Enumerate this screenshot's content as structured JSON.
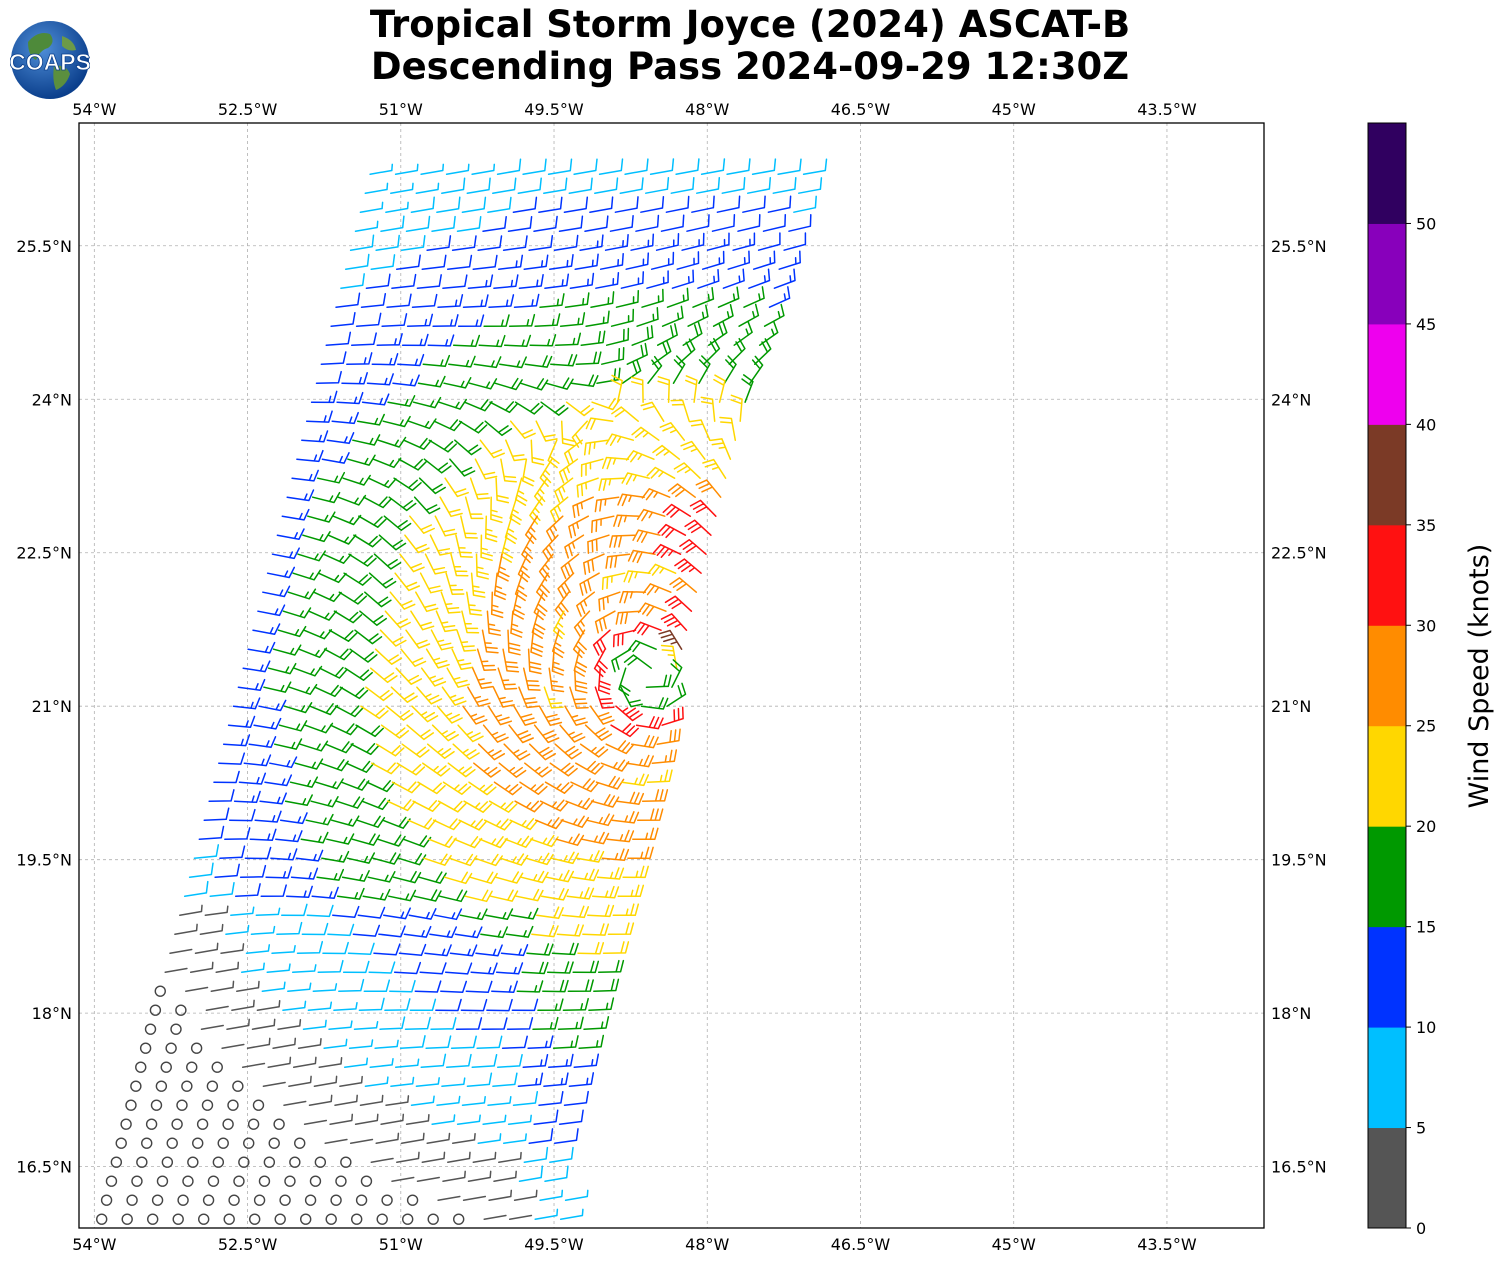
{
  "title": {
    "line1": "Tropical Storm Joyce (2024) ASCAT-B",
    "line2": "Descending Pass 2024-09-29 12:30Z"
  },
  "logo": {
    "text": "COAPS",
    "icon": "earth-globe-icon"
  },
  "map": {
    "lon_range": [
      -54.15,
      -42.55
    ],
    "lat_range": [
      15.9,
      26.7
    ],
    "lon_ticks": [
      "54°W",
      "52.5°W",
      "51°W",
      "49.5°W",
      "48°W",
      "46.5°W",
      "45°W",
      "43.5°W"
    ],
    "lat_ticks": [
      "25.5°N",
      "24°N",
      "22.5°N",
      "21°N",
      "19.5°N",
      "18°N",
      "16.5°N"
    ],
    "grid": true
  },
  "colorbar": {
    "label": "Wind Speed (knots)",
    "ticks": [
      "0",
      "5",
      "10",
      "15",
      "20",
      "25",
      "30",
      "35",
      "40",
      "45",
      "50"
    ],
    "colors": [
      "#555555",
      "#00bfff",
      "#0033ff",
      "#009900",
      "#ffd700",
      "#ff8c00",
      "#ff1111",
      "#7b3a26",
      "#ee00ee",
      "#8800bb",
      "#300060"
    ]
  },
  "wind": {
    "storm_center": {
      "lon": -48.6,
      "lat": 21.3
    },
    "swath": {
      "lat_bottom": 15.9,
      "lat_top": 26.2,
      "west_bottom": -53.95,
      "west_top": -51.3,
      "east_bottom": -49.45,
      "east_top": -47.0
    }
  }
}
